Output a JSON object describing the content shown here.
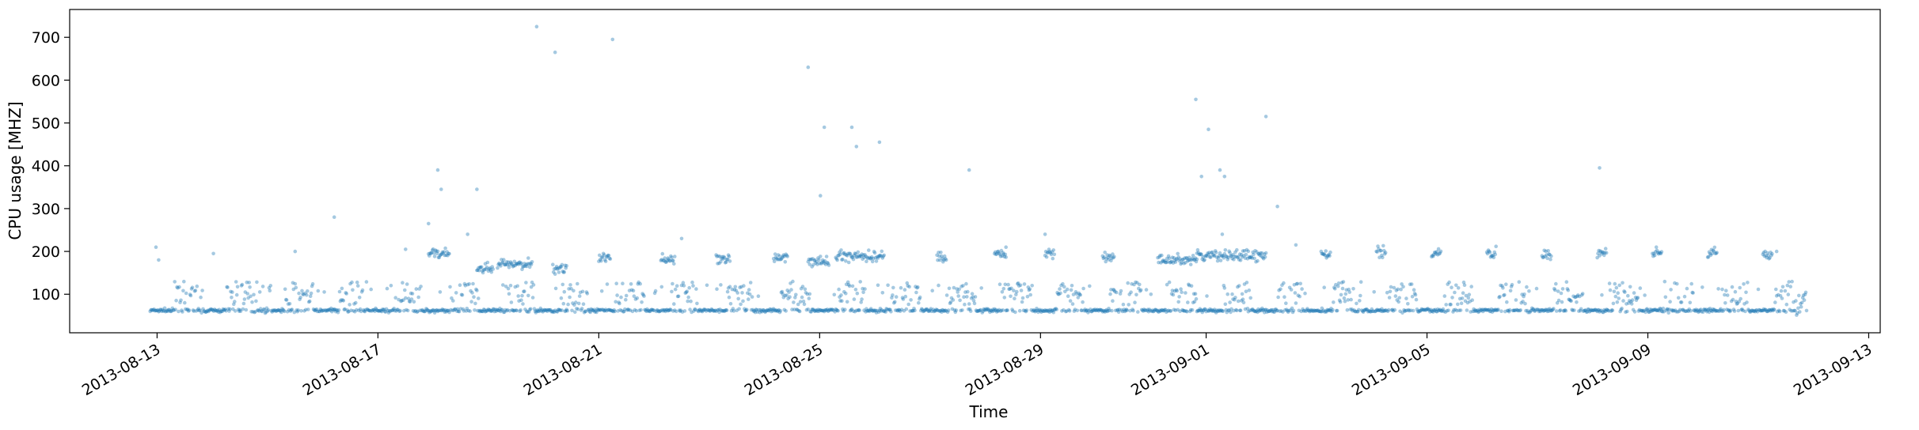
{
  "chart_data": {
    "type": "scatter",
    "title": "",
    "xlabel": "Time",
    "ylabel": "CPU usage [MHZ]",
    "x_axis": {
      "type": "date",
      "range": [
        "2013-08-11T10:00",
        "2013-09-13T05:00"
      ],
      "ticks": [
        "2013-08-13",
        "2013-08-17",
        "2013-08-21",
        "2013-08-25",
        "2013-08-29",
        "2013-09-01",
        "2013-09-05",
        "2013-09-09",
        "2013-09-13"
      ]
    },
    "y_axis": {
      "range": [
        10,
        765
      ],
      "ticks": [
        100,
        200,
        300,
        400,
        500,
        600,
        700
      ]
    },
    "grid": false,
    "legend": "none",
    "marker_color": "#1f77b4",
    "marker_alpha": 0.4,
    "data_span": {
      "start": "2013-08-12T21:00",
      "end": "2013-09-11T21:00",
      "sample_interval_minutes": 20
    },
    "outliers": [
      {
        "x": "2013-08-12T23:30",
        "y": 210
      },
      {
        "x": "2013-08-13T00:40",
        "y": 180
      },
      {
        "x": "2013-08-14T00:30",
        "y": 195
      },
      {
        "x": "2013-08-15T12:00",
        "y": 200
      },
      {
        "x": "2013-08-16T05:00",
        "y": 280
      },
      {
        "x": "2013-08-17T12:00",
        "y": 205
      },
      {
        "x": "2013-08-17T22:00",
        "y": 265
      },
      {
        "x": "2013-08-18T02:00",
        "y": 390
      },
      {
        "x": "2013-08-18T03:30",
        "y": 345
      },
      {
        "x": "2013-08-18T15:00",
        "y": 240
      },
      {
        "x": "2013-08-18T19:00",
        "y": 345
      },
      {
        "x": "2013-08-19T21:00",
        "y": 725
      },
      {
        "x": "2013-08-20T05:00",
        "y": 665
      },
      {
        "x": "2013-08-21T06:00",
        "y": 695
      },
      {
        "x": "2013-08-22T12:00",
        "y": 230
      },
      {
        "x": "2013-08-24T19:00",
        "y": 630
      },
      {
        "x": "2013-08-25T02:00",
        "y": 490
      },
      {
        "x": "2013-08-25T00:20",
        "y": 330
      },
      {
        "x": "2013-08-25T14:00",
        "y": 490
      },
      {
        "x": "2013-08-25T16:00",
        "y": 445
      },
      {
        "x": "2013-08-26T02:00",
        "y": 455
      },
      {
        "x": "2013-08-27T17:00",
        "y": 390
      },
      {
        "x": "2013-08-28T09:00",
        "y": 210
      },
      {
        "x": "2013-08-29T02:00",
        "y": 240
      },
      {
        "x": "2013-08-31T19:30",
        "y": 555
      },
      {
        "x": "2013-08-31T22:00",
        "y": 375
      },
      {
        "x": "2013-09-01T01:00",
        "y": 485
      },
      {
        "x": "2013-09-01T06:00",
        "y": 390
      },
      {
        "x": "2013-09-01T08:00",
        "y": 375
      },
      {
        "x": "2013-09-01T07:00",
        "y": 240
      },
      {
        "x": "2013-09-02T02:00",
        "y": 515
      },
      {
        "x": "2013-09-02T07:00",
        "y": 305
      },
      {
        "x": "2013-09-02T15:00",
        "y": 215
      },
      {
        "x": "2013-09-08T03:00",
        "y": 395
      },
      {
        "x": "2013-09-11T08:00",
        "y": 200
      }
    ],
    "elevated_band_segments": [
      {
        "start": "2013-08-17T22:00",
        "end": "2013-08-18T07:00",
        "level": 195
      },
      {
        "start": "2013-08-18T19:00",
        "end": "2013-08-19T02:00",
        "level": 160
      },
      {
        "start": "2013-08-19T04:00",
        "end": "2013-08-19T19:00",
        "level": 170
      },
      {
        "start": "2013-08-20T04:00",
        "end": "2013-08-20T10:00",
        "level": 160
      },
      {
        "start": "2013-08-21T00:00",
        "end": "2013-08-21T05:00",
        "level": 185
      },
      {
        "start": "2013-08-22T03:00",
        "end": "2013-08-22T09:00",
        "level": 180
      },
      {
        "start": "2013-08-23T03:00",
        "end": "2013-08-23T09:00",
        "level": 185
      },
      {
        "start": "2013-08-24T04:00",
        "end": "2013-08-24T10:00",
        "level": 185
      },
      {
        "start": "2013-08-24T19:00",
        "end": "2013-08-25T04:00",
        "level": 175
      },
      {
        "start": "2013-08-25T07:00",
        "end": "2013-08-26T04:00",
        "level": 190
      },
      {
        "start": "2013-08-27T03:00",
        "end": "2013-08-27T07:00",
        "level": 185
      },
      {
        "start": "2013-08-28T04:00",
        "end": "2013-08-28T09:00",
        "level": 195
      },
      {
        "start": "2013-08-29T02:00",
        "end": "2013-08-29T06:00",
        "level": 195
      },
      {
        "start": "2013-08-30T03:00",
        "end": "2013-08-30T08:00",
        "level": 185
      },
      {
        "start": "2013-08-31T03:00",
        "end": "2013-08-31T20:00",
        "level": 180
      },
      {
        "start": "2013-08-31T20:00",
        "end": "2013-09-02T02:00",
        "level": 190
      },
      {
        "start": "2013-09-03T02:00",
        "end": "2013-09-03T06:00",
        "level": 190
      },
      {
        "start": "2013-09-04T02:00",
        "end": "2013-09-04T06:00",
        "level": 200
      },
      {
        "start": "2013-09-05T02:00",
        "end": "2013-09-05T06:00",
        "level": 195
      },
      {
        "start": "2013-09-06T02:00",
        "end": "2013-09-06T06:00",
        "level": 195
      },
      {
        "start": "2013-09-07T02:00",
        "end": "2013-09-07T06:00",
        "level": 195
      },
      {
        "start": "2013-09-08T02:00",
        "end": "2013-09-08T06:00",
        "level": 195
      },
      {
        "start": "2013-09-09T02:00",
        "end": "2013-09-09T06:00",
        "level": 195
      },
      {
        "start": "2013-09-10T02:00",
        "end": "2013-09-10T06:00",
        "level": 195
      },
      {
        "start": "2013-09-11T02:00",
        "end": "2013-09-11T06:00",
        "level": 195
      }
    ]
  }
}
